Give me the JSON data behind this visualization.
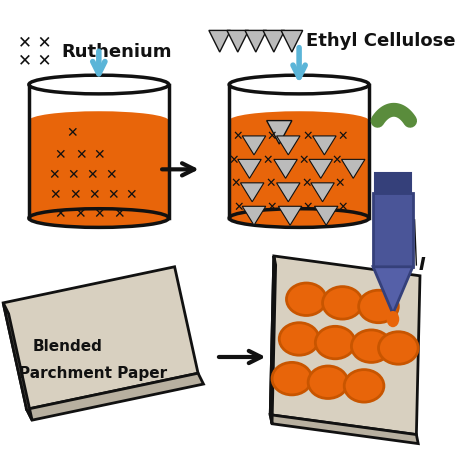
{
  "bg_color": "#ffffff",
  "orange": "#E8650A",
  "dark_orange": "#C85500",
  "light_beige": "#D8D0C0",
  "gray_beige": "#B8B0A0",
  "mid_beige": "#C8C0B0",
  "blue_arrow": "#5BB5D8",
  "navy": "#4A5598",
  "navy_dark": "#35407A",
  "navy_mid": "#5560A8",
  "green": "#5A8C3C",
  "black": "#111111",
  "white": "#FFFFFF",
  "light_gray": "#CCCCCC",
  "gray_tri": "#BBBBBB",
  "label_ruthenium": "Ruthenium",
  "label_ethyl": "Ethyl Cellulose",
  "label_inkjet": "I"
}
